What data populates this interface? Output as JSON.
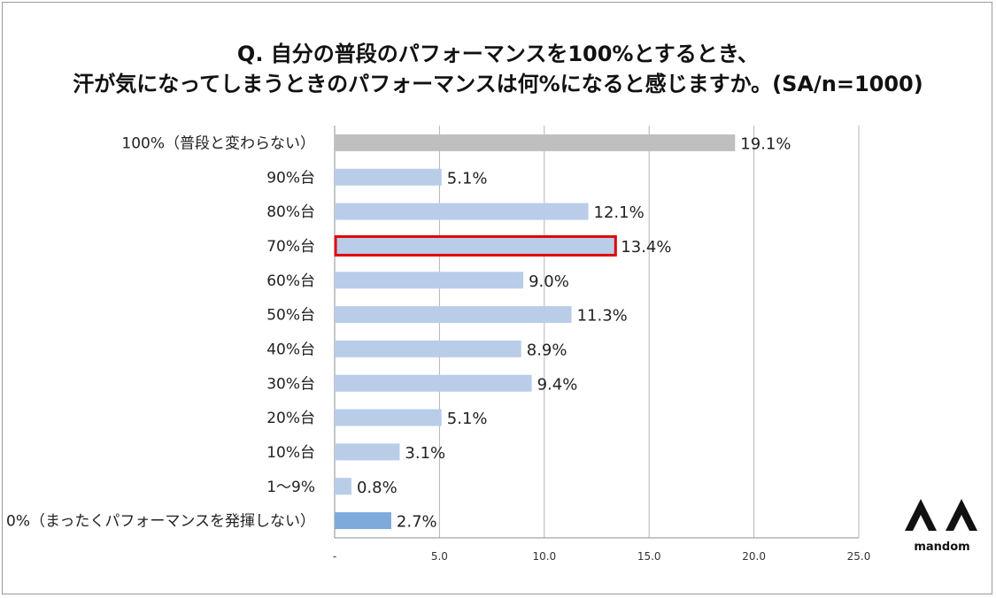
{
  "title": {
    "line1": "Q. 自分の普段のパフォーマンスを100%とするとき、",
    "line2": "汗が気になってしまうときのパフォーマンスは何%になると感じますか。(SA/n=1000)"
  },
  "brand": {
    "name": "mandom"
  },
  "chart_data": {
    "type": "bar",
    "orientation": "horizontal",
    "categories": [
      "100%（普段と変わらない）",
      "90%台",
      "80%台",
      "70%台",
      "60%台",
      "50%台",
      "40%台",
      "30%台",
      "20%台",
      "10%台",
      "1～9%",
      "0%（まったくパフォーマンスを発揮しない）"
    ],
    "values": [
      19.1,
      5.1,
      12.1,
      13.4,
      9.0,
      11.3,
      8.9,
      9.4,
      5.1,
      3.1,
      0.8,
      2.7
    ],
    "value_labels": [
      "19.1%",
      "5.1%",
      "12.1%",
      "13.4%",
      "9.0%",
      "11.3%",
      "8.9%",
      "9.4%",
      "5.1%",
      "3.1%",
      "0.8%",
      "2.7%"
    ],
    "bar_colors": [
      "#bfbfbf",
      "#b9cde9",
      "#b9cde9",
      "#b9cde9",
      "#b9cde9",
      "#b9cde9",
      "#b9cde9",
      "#b9cde9",
      "#b9cde9",
      "#b9cde9",
      "#b9cde9",
      "#7eaadb"
    ],
    "highlight_index": 3,
    "highlight_color": "#e00000",
    "xlim": [
      0,
      25
    ],
    "xticks": [
      0,
      5,
      10,
      15,
      20,
      25
    ],
    "xtick_labels": [
      "-",
      "5.0",
      "10.0",
      "15.0",
      "20.0",
      "25.0"
    ],
    "grid": true,
    "xlabel": "",
    "ylabel": ""
  }
}
